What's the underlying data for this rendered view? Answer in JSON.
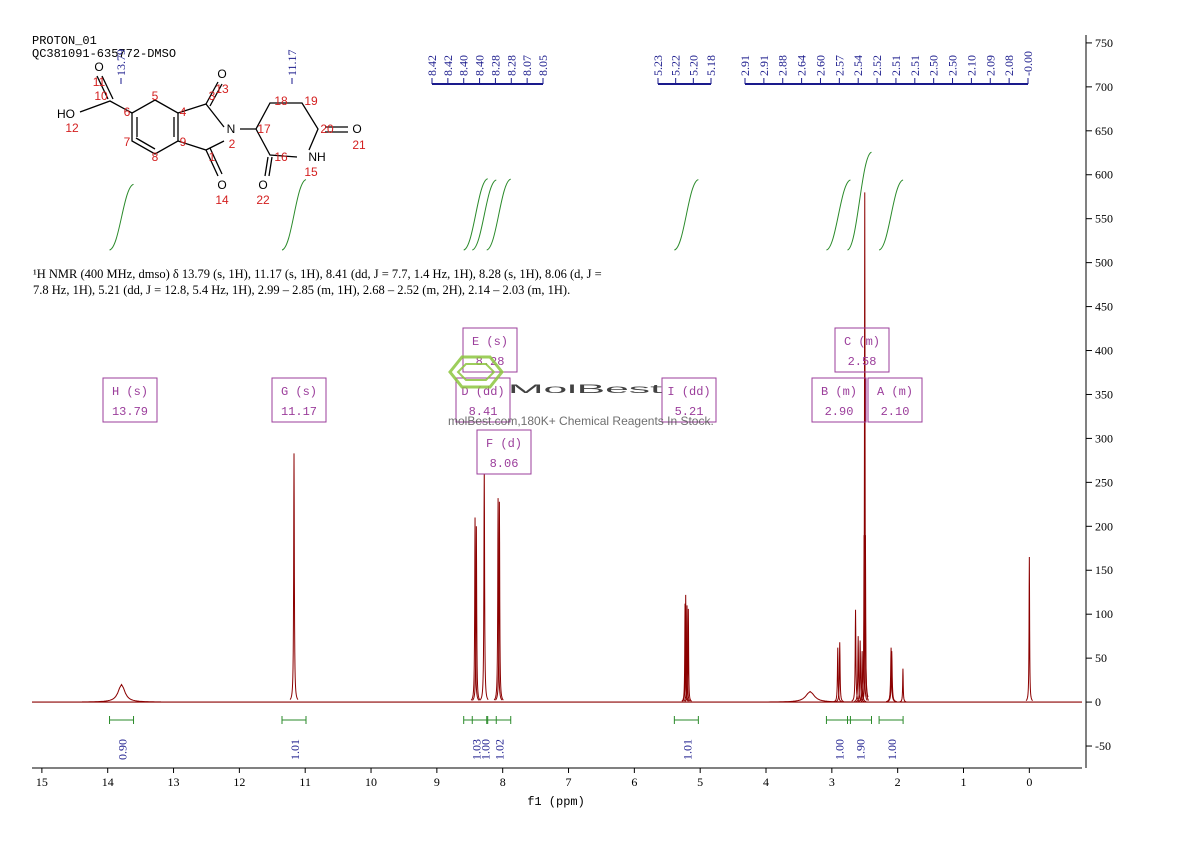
{
  "header": {
    "experiment": "PROTON_01",
    "sample": "QC381091-635772-DMSO"
  },
  "structure": {
    "atoms": [
      "O",
      "HO",
      "O",
      "N",
      "O",
      "O",
      "NH",
      "O"
    ],
    "numbers": [
      "11",
      "10",
      "12",
      "6",
      "5",
      "4",
      "3",
      "13",
      "2",
      "17",
      "18",
      "19",
      "20",
      "21",
      "16",
      "15",
      "22",
      "7",
      "8",
      "9",
      "1",
      "14"
    ]
  },
  "description": "¹H NMR (400 MHz, dmso) δ 13.79 (s, 1H), 11.17 (s, 1H), 8.41 (dd, J = 7.7, 1.4 Hz, 1H), 8.28 (s, 1H), 8.06 (d, J = 7.8 Hz, 1H), 5.21 (dd, J = 12.8, 5.4 Hz, 1H), 2.99 – 2.85 (m, 1H), 2.68 – 2.52 (m, 2H), 2.14 – 2.03 (m, 1H).",
  "watermark": {
    "logo": "MolBest",
    "text": "molBest.com,180K+ Chemical Reagents In Stock."
  },
  "chart_data": {
    "type": "nmr",
    "x_label": "f1 (ppm)",
    "xlim": [
      15.15,
      -0.8
    ],
    "xticks": [
      15,
      14,
      13,
      12,
      11,
      10,
      9,
      8,
      7,
      6,
      5,
      4,
      3,
      2,
      1,
      0
    ],
    "ylim": [
      -75,
      759
    ],
    "yticks": [
      -50,
      0,
      50,
      100,
      150,
      200,
      250,
      300,
      350,
      400,
      450,
      500,
      550,
      600,
      650,
      700,
      750
    ],
    "color": "#8b0000",
    "label_color": "#1a1a8c",
    "integral_color": "#2a8a2a",
    "box_color": "#9b3d9b",
    "peaks": {
      "ppm": [
        13.79,
        11.17,
        8.42,
        8.4,
        8.28,
        8.07,
        8.05,
        5.23,
        5.22,
        5.2,
        5.18,
        3.33,
        2.91,
        2.88,
        2.64,
        2.6,
        2.57,
        2.54,
        2.51,
        2.5,
        2.49,
        2.1,
        2.09,
        1.92,
        0.0
      ],
      "heights": [
        20,
        283,
        210,
        200,
        268,
        232,
        228,
        112,
        122,
        110,
        106,
        12,
        62,
        68,
        105,
        75,
        70,
        58,
        190,
        580,
        190,
        62,
        58,
        38,
        165
      ],
      "widths": [
        0.12,
        0.012,
        0.012,
        0.012,
        0.012,
        0.012,
        0.012,
        0.01,
        0.01,
        0.01,
        0.01,
        0.15,
        0.012,
        0.012,
        0.012,
        0.012,
        0.012,
        0.012,
        0.01,
        0.01,
        0.01,
        0.015,
        0.015,
        0.01,
        0.01
      ]
    },
    "peak_label_groups": [
      [
        "13.79"
      ],
      [
        "11.17"
      ],
      [
        "8.42",
        "8.42",
        "8.40",
        "8.40",
        "8.28",
        "8.28",
        "8.07",
        "8.05"
      ],
      [
        "5.23",
        "5.22",
        "5.20",
        "5.18"
      ],
      [
        "2.91",
        "2.91",
        "2.88",
        "2.64",
        "2.60",
        "2.57",
        "2.54",
        "2.52",
        "2.51",
        "2.51",
        "2.50",
        "2.50",
        "2.10",
        "2.09",
        "2.08",
        "-0.00"
      ]
    ],
    "multiplets": [
      {
        "label": "H (s)",
        "shift": "13.79"
      },
      {
        "label": "G (s)",
        "shift": "11.17"
      },
      {
        "label": "E (s)",
        "shift": "8.28"
      },
      {
        "label": "D (dd)",
        "shift": "8.41"
      },
      {
        "label": "F (d)",
        "shift": "8.06"
      },
      {
        "label": "I (dd)",
        "shift": "5.21"
      },
      {
        "label": "B (m)",
        "shift": "2.90"
      },
      {
        "label": "C (m)",
        "shift": "2.58"
      },
      {
        "label": "A (m)",
        "shift": "2.10"
      }
    ],
    "integrals": {
      "x": [
        13.79,
        11.17,
        8.41,
        8.28,
        8.06,
        5.21,
        2.9,
        2.58,
        2.1
      ],
      "values": [
        0.9,
        1.01,
        1.03,
        1.0,
        1.02,
        1.01,
        1.0,
        1.9,
        1.0
      ],
      "value_labels": [
        "0.90",
        "1.01",
        "1.03",
        "1.00",
        "1.02",
        "1.01",
        "1.00",
        "1.90",
        "1.00"
      ]
    }
  }
}
